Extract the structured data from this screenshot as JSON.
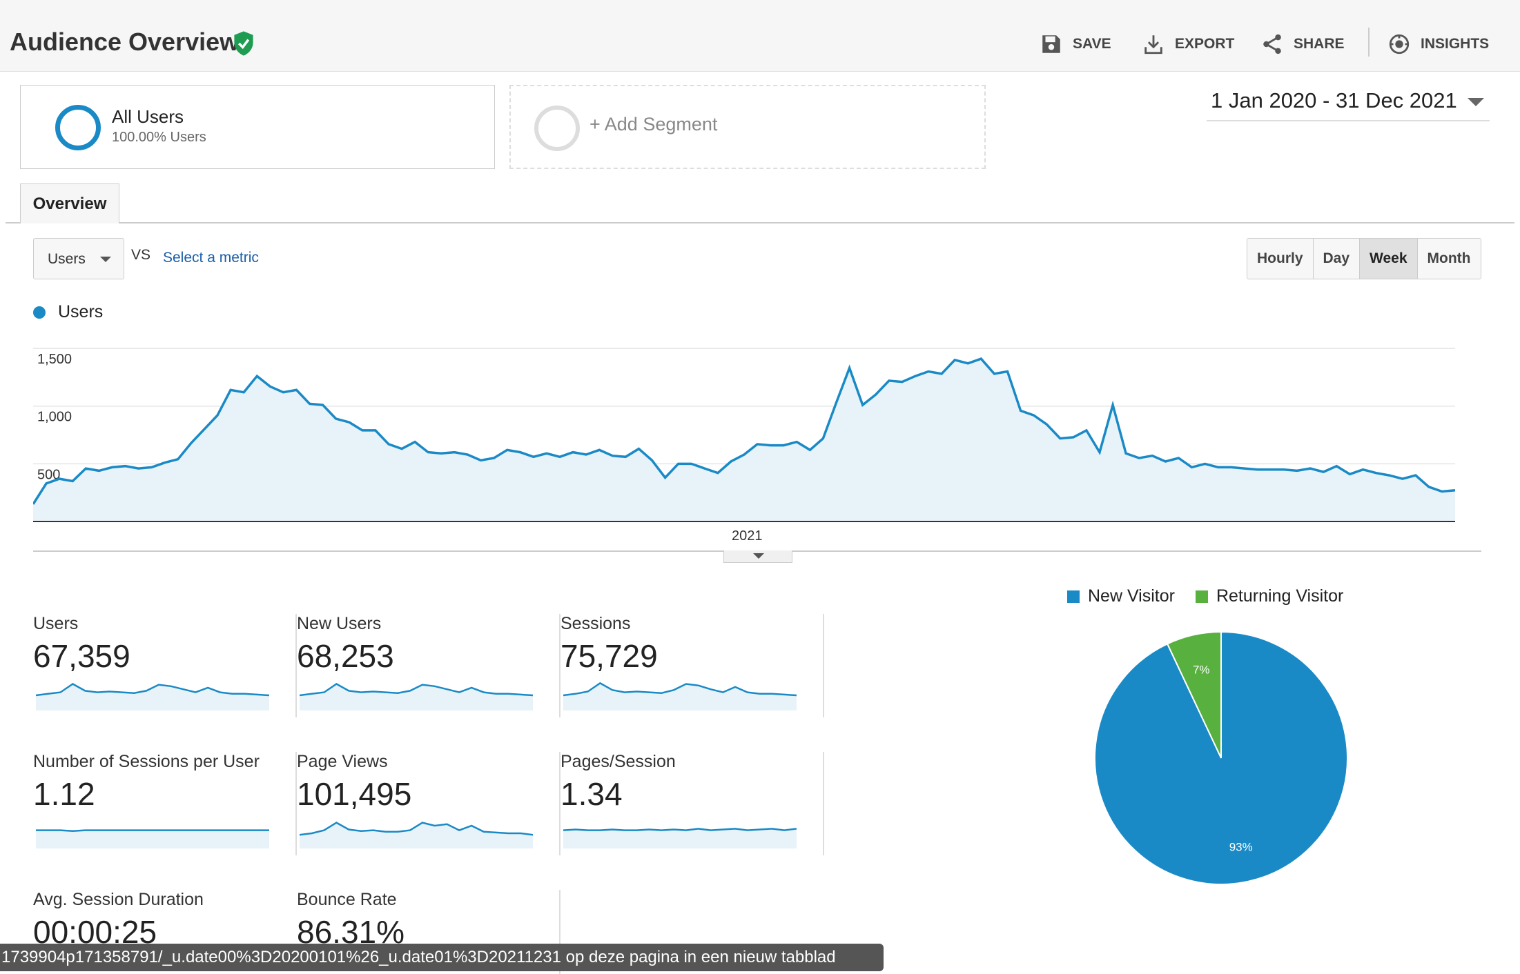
{
  "header": {
    "title": "Audience Overview",
    "actions": {
      "save": "SAVE",
      "export": "EXPORT",
      "share": "SHARE",
      "insights": "INSIGHTS"
    }
  },
  "segments": {
    "active": {
      "name": "All Users",
      "sub": "100.00% Users"
    },
    "add": "+ Add Segment"
  },
  "date_range": "1 Jan 2020 - 31 Dec 2021",
  "tabs": {
    "overview": "Overview"
  },
  "metric_selector": {
    "selected": "Users",
    "vs": "VS",
    "select_metric": "Select a metric"
  },
  "periods": [
    {
      "label": "Hourly",
      "active": false
    },
    {
      "label": "Day",
      "active": false
    },
    {
      "label": "Week",
      "active": true
    },
    {
      "label": "Month",
      "active": false
    }
  ],
  "colors": {
    "primary": "#1a8ac6",
    "secondary": "#58b03f",
    "fill": "#e8f2f9"
  },
  "chart_data": [
    {
      "type": "area",
      "title": "",
      "legend": [
        "Users"
      ],
      "y_ticks": [
        "1,500",
        "1,000",
        "500"
      ],
      "x_label": "2021",
      "ylim": [
        0,
        1650
      ],
      "series": [
        {
          "name": "Users",
          "values": [
            150,
            330,
            370,
            350,
            460,
            440,
            470,
            480,
            460,
            470,
            510,
            540,
            680,
            800,
            920,
            1140,
            1120,
            1260,
            1170,
            1120,
            1140,
            1020,
            1010,
            890,
            860,
            790,
            790,
            670,
            630,
            690,
            600,
            590,
            600,
            580,
            530,
            550,
            620,
            600,
            560,
            590,
            560,
            600,
            580,
            620,
            570,
            560,
            630,
            530,
            380,
            500,
            500,
            460,
            420,
            520,
            580,
            670,
            660,
            660,
            690,
            620,
            720,
            1030,
            1330,
            1010,
            1100,
            1220,
            1210,
            1260,
            1300,
            1280,
            1400,
            1370,
            1410,
            1280,
            1300,
            960,
            920,
            840,
            720,
            730,
            790,
            600,
            1010,
            590,
            550,
            570,
            520,
            550,
            470,
            500,
            470,
            470,
            460,
            450,
            450,
            450,
            440,
            460,
            430,
            480,
            410,
            450,
            420,
            400,
            370,
            400,
            300,
            260,
            270
          ]
        }
      ]
    },
    {
      "type": "pie",
      "legend": [
        "New Visitor",
        "Returning Visitor"
      ],
      "slices": [
        {
          "name": "New Visitor",
          "value": 93,
          "label": "93%"
        },
        {
          "name": "Returning Visitor",
          "value": 7,
          "label": "7%"
        }
      ]
    }
  ],
  "metrics": [
    {
      "label": "Users",
      "value": "67,359",
      "spark": [
        20,
        22,
        24,
        35,
        26,
        24,
        25,
        24,
        23,
        26,
        34,
        32,
        28,
        24,
        30,
        24,
        22,
        22,
        21,
        20
      ]
    },
    {
      "label": "New Users",
      "value": "68,253",
      "spark": [
        20,
        22,
        24,
        35,
        26,
        24,
        25,
        24,
        23,
        26,
        34,
        32,
        28,
        24,
        30,
        24,
        22,
        22,
        21,
        20
      ]
    },
    {
      "label": "Sessions",
      "value": "75,729",
      "spark": [
        20,
        22,
        25,
        36,
        27,
        24,
        25,
        24,
        23,
        27,
        35,
        33,
        28,
        24,
        31,
        24,
        22,
        22,
        21,
        20
      ]
    },
    {
      "label": "Number of Sessions per User",
      "value": "1.12",
      "spark": [
        24,
        24,
        24,
        23,
        24,
        24,
        24,
        24,
        24,
        24,
        24,
        24,
        24,
        24,
        24,
        24,
        24,
        24,
        24,
        24
      ]
    },
    {
      "label": "Page Views",
      "value": "101,495",
      "spark": [
        18,
        20,
        24,
        34,
        25,
        23,
        24,
        22,
        22,
        24,
        34,
        30,
        32,
        24,
        30,
        22,
        21,
        20,
        20,
        18
      ]
    },
    {
      "label": "Pages/Session",
      "value": "1.34",
      "spark": [
        24,
        25,
        24,
        24,
        25,
        24,
        24,
        25,
        24,
        25,
        24,
        26,
        24,
        25,
        26,
        24,
        25,
        26,
        24,
        26
      ]
    },
    {
      "label": "Avg. Session Duration",
      "value": "00:00:25",
      "spark": []
    },
    {
      "label": "Bounce Rate",
      "value": "86.31%",
      "spark": []
    }
  ],
  "status_bar": "1739904p171358791/_u.date00%3D20200101%26_u.date01%3D20211231 op deze pagina in een nieuw tabblad"
}
